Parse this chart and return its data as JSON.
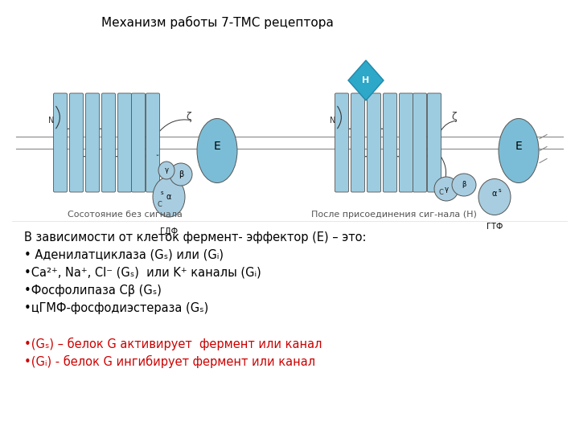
{
  "title": "Механизм работы 7-ТМС рецептора",
  "title_fontsize": 11,
  "background_color": "#ffffff",
  "light_blue": "#9dcce0",
  "teal_blue": "#7bbdd6",
  "cyan_blue": "#2da8c8",
  "gprotein_color": "#a8cde0",
  "text_color": "#000000",
  "red_color": "#cc0000",
  "line_color": "#555555",
  "caption_left": "Сосотояние без сигнала",
  "caption_right": "После присоединения сиг-нала (Н)",
  "line1": "В зависимости от клеток фермент- эффектор (E) – это:",
  "line2": "• Аденилатциклаза (Gₛ) или (Gᵢ)",
  "line3": "•Ca²⁺, Na⁺, Cl⁻ (Gₛ)  или K⁺ каналы (Gᵢ)",
  "line4": "•Фосфолипаза Cβ (Gₛ)",
  "line5": "•цГМФ-фосфодиэстераза (Gₛ)",
  "line6": "•(Gₛ) – белок G активирует  фермент или канал",
  "line7": "•(Gᵢ) - белок G ингибирует фермент или канал"
}
